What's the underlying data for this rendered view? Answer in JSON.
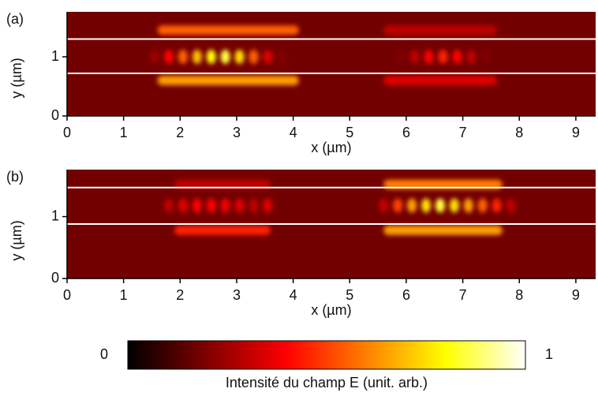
{
  "chart_data": [
    {
      "type": "heatmap",
      "panel_label": "(a)",
      "xlabel": "x (µm)",
      "ylabel": "y (µm)",
      "xlim": [
        0,
        9.35
      ],
      "ylim": [
        0,
        1.76
      ],
      "xticks": [
        0,
        1,
        2,
        3,
        4,
        5,
        6,
        7,
        8,
        9
      ],
      "yticks": [
        0,
        1
      ],
      "background": 0.18,
      "guide_lines": [
        0.72,
        1.3
      ],
      "spots": {
        "x": [
          1.55,
          1.8,
          2.05,
          2.3,
          2.55,
          2.8,
          3.05,
          3.3,
          3.55,
          3.8,
          5.9,
          6.15,
          6.4,
          6.65,
          6.9,
          7.15,
          7.4
        ],
        "y": [
          1,
          1,
          1,
          1,
          1,
          1,
          1,
          1,
          1,
          1,
          1,
          1,
          1,
          1,
          1,
          1,
          1
        ],
        "values": [
          0.25,
          0.4,
          0.55,
          0.7,
          0.8,
          0.85,
          0.75,
          0.55,
          0.35,
          0.2,
          0.2,
          0.3,
          0.4,
          0.45,
          0.4,
          0.3,
          0.2
        ]
      },
      "bands": {
        "x_start": [
          1.6,
          1.6,
          5.6,
          5.6
        ],
        "x_end": [
          4.1,
          4.1,
          7.6,
          7.6
        ],
        "y": [
          1.45,
          0.6,
          1.45,
          0.6
        ],
        "values": [
          0.55,
          0.65,
          0.3,
          0.35
        ]
      }
    },
    {
      "type": "heatmap",
      "panel_label": "(b)",
      "xlabel": "x (µm)",
      "ylabel": "y (µm)",
      "xlim": [
        0,
        9.35
      ],
      "ylim": [
        0,
        1.76
      ],
      "xticks": [
        0,
        1,
        2,
        3,
        4,
        5,
        6,
        7,
        8,
        9
      ],
      "yticks": [
        0,
        1
      ],
      "background": 0.18,
      "guide_lines": [
        0.88,
        1.47
      ],
      "spots": {
        "x": [
          1.8,
          2.05,
          2.3,
          2.55,
          2.8,
          3.05,
          3.3,
          3.55,
          5.6,
          5.85,
          6.1,
          6.35,
          6.6,
          6.85,
          7.1,
          7.35,
          7.6,
          7.85
        ],
        "y": [
          1.18,
          1.18,
          1.18,
          1.18,
          1.18,
          1.18,
          1.18,
          1.18,
          1.18,
          1.18,
          1.18,
          1.18,
          1.18,
          1.18,
          1.18,
          1.18,
          1.18,
          1.18
        ],
        "values": [
          0.3,
          0.35,
          0.4,
          0.4,
          0.38,
          0.35,
          0.3,
          0.35,
          0.3,
          0.5,
          0.65,
          0.75,
          0.85,
          0.75,
          0.65,
          0.55,
          0.45,
          0.3
        ]
      },
      "bands": {
        "x_start": [
          1.9,
          1.9,
          5.6,
          5.6
        ],
        "x_end": [
          3.6,
          3.6,
          7.7,
          7.7
        ],
        "y": [
          1.52,
          0.78,
          1.52,
          0.78
        ],
        "values": [
          0.3,
          0.45,
          0.6,
          0.65
        ]
      }
    },
    {
      "type": "colorbar",
      "clim": [
        0,
        1
      ],
      "cticks": [
        0,
        1
      ],
      "label": "Intensité du champ E (unit. arb.)"
    }
  ]
}
